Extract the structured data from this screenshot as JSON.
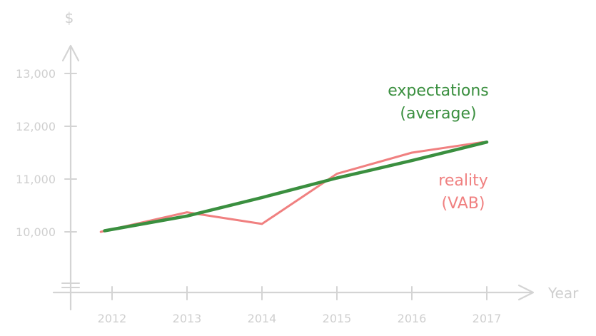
{
  "chart_data": {
    "type": "line",
    "title": "",
    "xlabel": "Year",
    "ylabel": "$",
    "categories": [
      "2012",
      "2013",
      "2014",
      "2015",
      "2016",
      "2017"
    ],
    "y_ticks": [
      "10,000",
      "11,000",
      "12,000",
      "13,000"
    ],
    "ylim": [
      9000,
      13500
    ],
    "grid": false,
    "series": [
      {
        "name": "expectations (average)",
        "label_lines": [
          "expectations",
          "(average)"
        ],
        "color": "#3a8f3f",
        "points": [
          [
            2011.9,
            10020
          ],
          [
            2013,
            10300
          ],
          [
            2014,
            10650
          ],
          [
            2015,
            11020
          ],
          [
            2016,
            11350
          ],
          [
            2017,
            11700
          ]
        ]
      },
      {
        "name": "reality (VAB)",
        "label_lines": [
          "reality",
          "(VAB)"
        ],
        "color": "#f08080",
        "points": [
          [
            2011.85,
            10000
          ],
          [
            2013,
            10370
          ],
          [
            2014,
            10150
          ],
          [
            2015,
            11100
          ],
          [
            2016,
            11500
          ],
          [
            2016.95,
            11700
          ]
        ]
      }
    ]
  }
}
